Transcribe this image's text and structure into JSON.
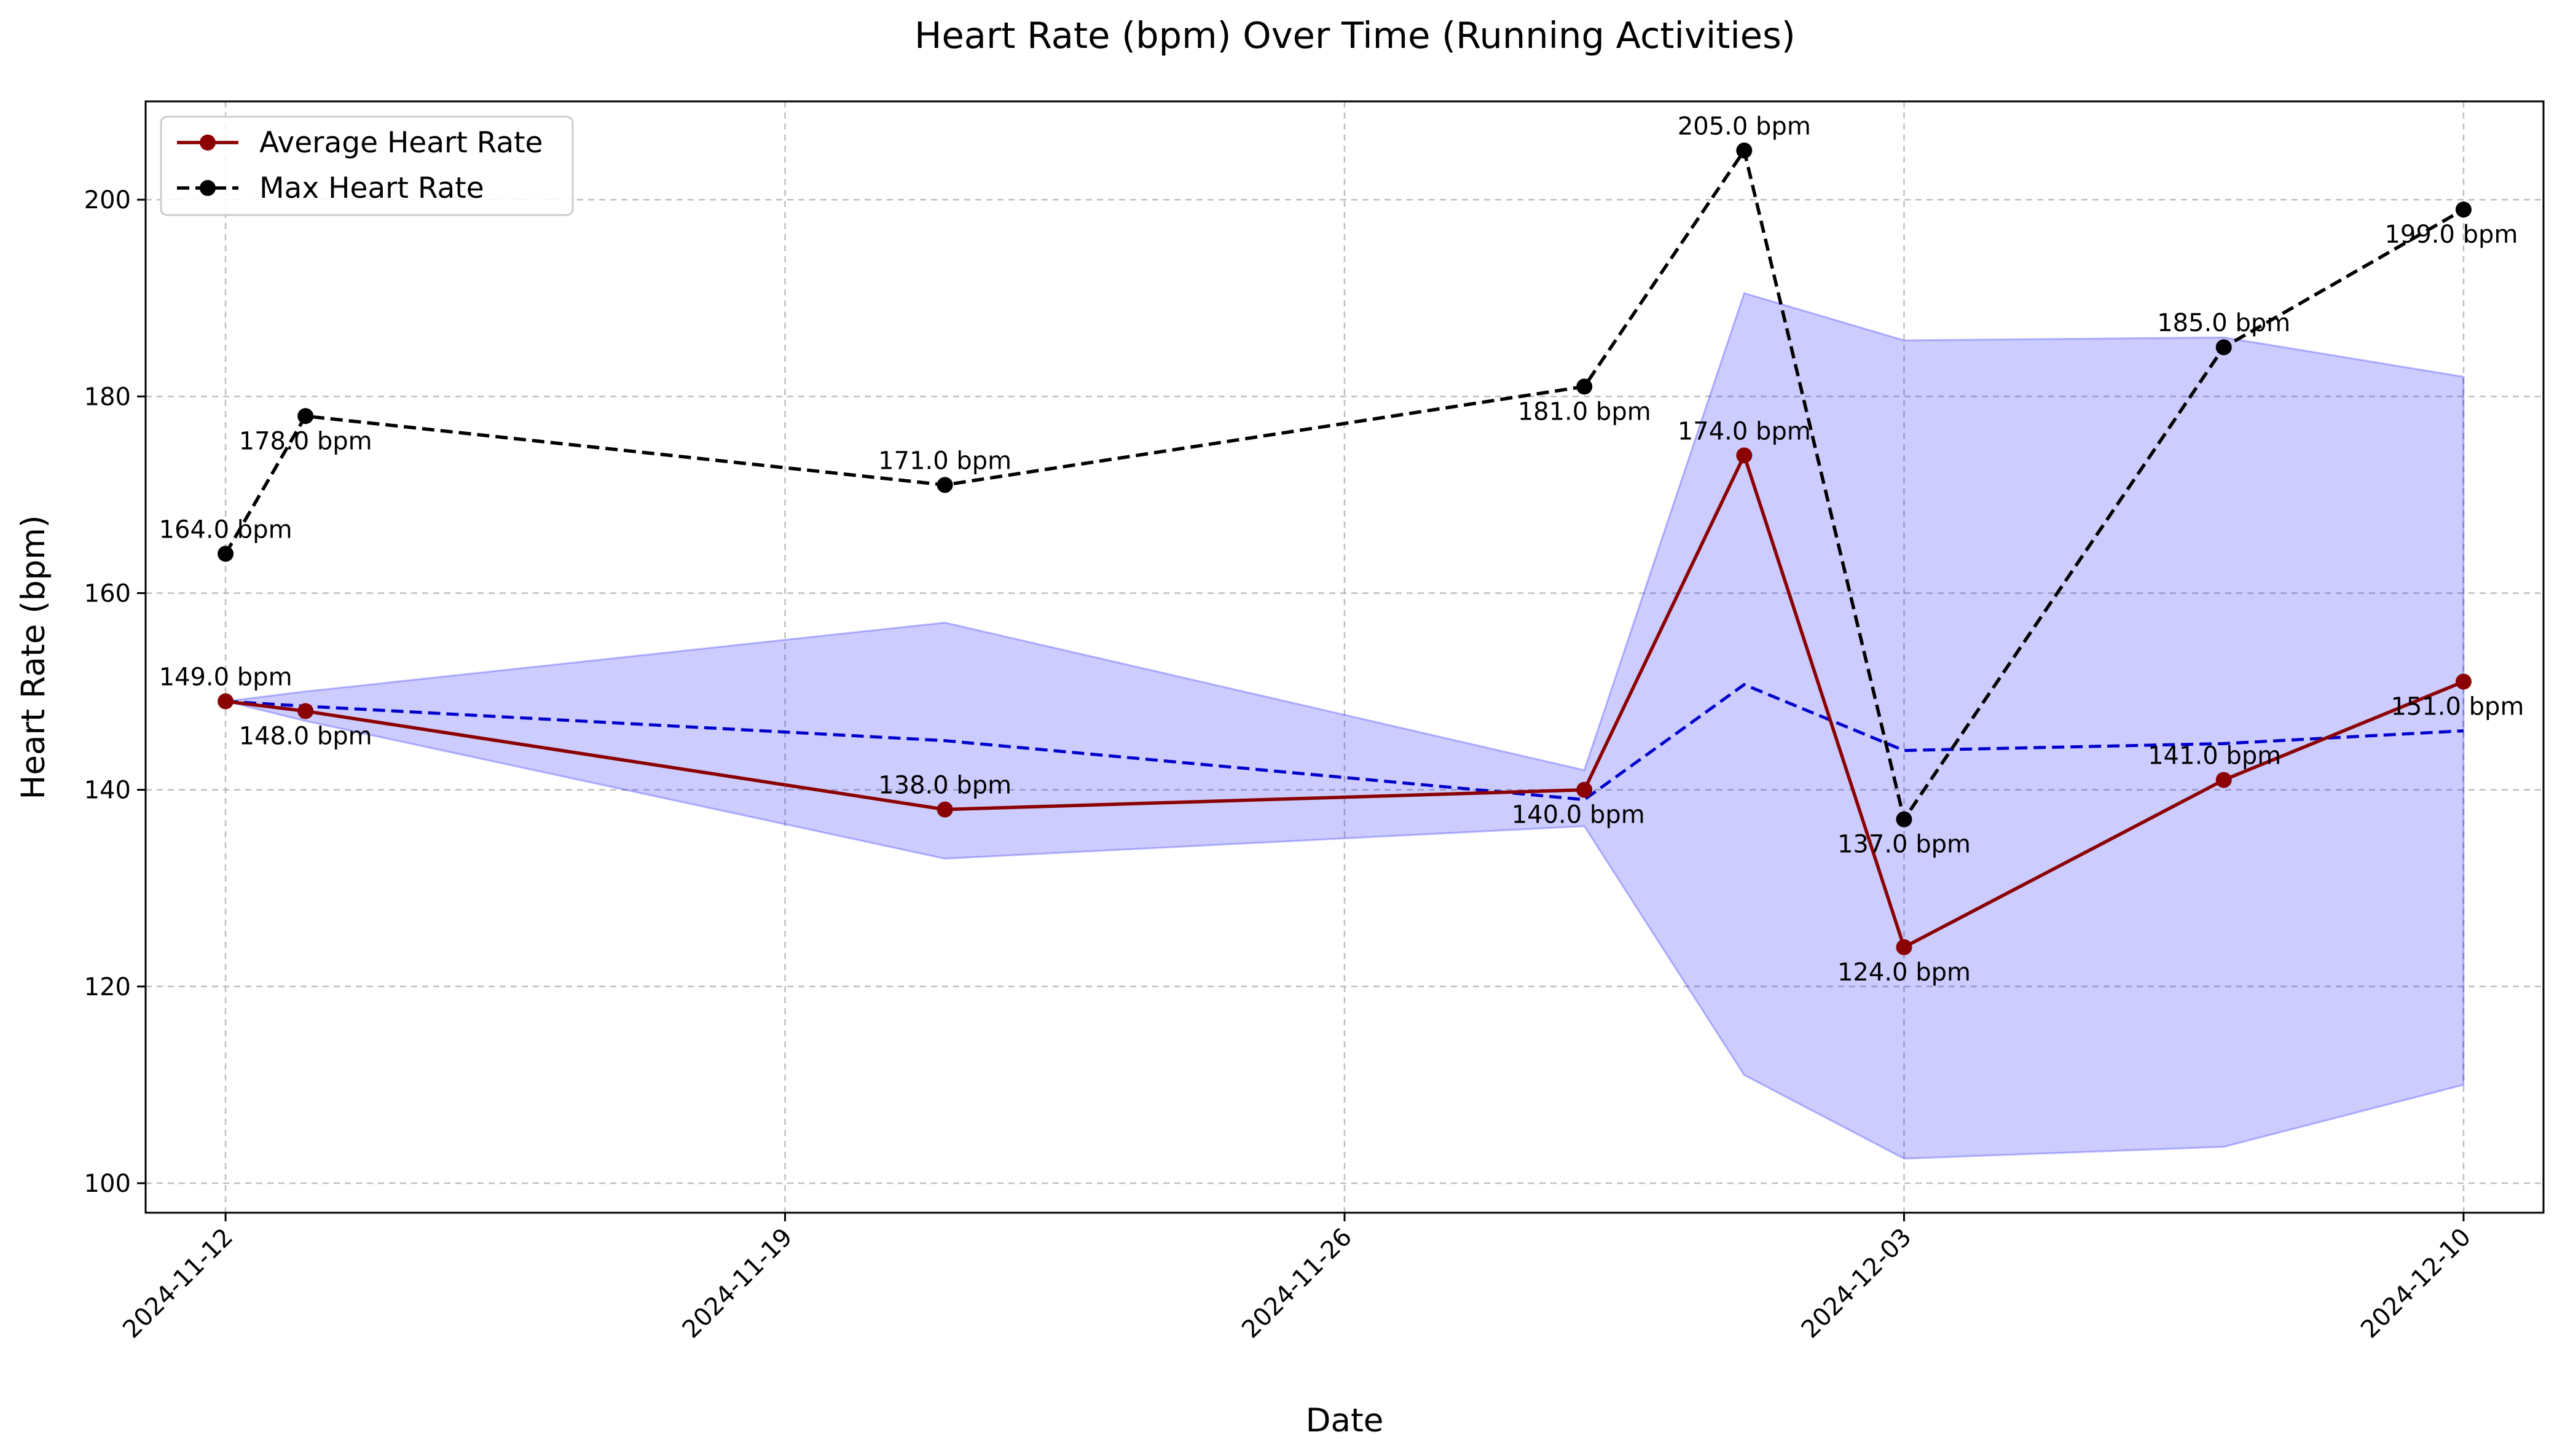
{
  "chart_data": {
    "type": "line",
    "title": "Heart Rate (bpm) Over Time (Running Activities)",
    "xlabel": "Date",
    "ylabel": "Heart Rate (bpm)",
    "xlim": [
      "2024-11-11",
      "2024-12-11"
    ],
    "ylim": [
      97,
      210
    ],
    "x_ticks": [
      "2024-11-12",
      "2024-11-19",
      "2024-11-26",
      "2024-12-03",
      "2024-12-10"
    ],
    "y_ticks": [
      100,
      120,
      140,
      160,
      180,
      200
    ],
    "grid": true,
    "legend_position": "top-left",
    "x": [
      "2024-11-12",
      "2024-11-13",
      "2024-11-21",
      "2024-11-29",
      "2024-12-01",
      "2024-12-03",
      "2024-12-07",
      "2024-12-10"
    ],
    "series": [
      {
        "name": "Average Heart Rate",
        "values": [
          149,
          148,
          138,
          140,
          174,
          124,
          141,
          151
        ],
        "labels": [
          "149.0 bpm",
          "148.0 bpm",
          "138.0 bpm",
          "140.0 bpm",
          "174.0 bpm",
          "124.0 bpm",
          "141.0 bpm",
          "151.0 bpm"
        ],
        "color": "#8b0000",
        "style": "solid",
        "marker": "circle"
      },
      {
        "name": "Max Heart Rate",
        "values": [
          164,
          178,
          171,
          181,
          205,
          137,
          185,
          199
        ],
        "labels": [
          "164.0 bpm",
          "178.0 bpm",
          "171.0 bpm",
          "181.0 bpm",
          "205.0 bpm",
          "137.0 bpm",
          "185.0 bpm",
          "199.0 bpm"
        ],
        "color": "#000000",
        "style": "dashed",
        "marker": "circle"
      },
      {
        "values": [
          149,
          148.5,
          145,
          139,
          150.7,
          144,
          144.7,
          146
        ],
        "color": "#0000cc",
        "style": "dashed"
      }
    ],
    "band": {
      "upper": [
        149,
        150,
        157,
        142,
        190.5,
        185.7,
        186,
        182
      ],
      "lower": [
        149,
        147,
        133,
        136.3,
        111,
        102.5,
        103.7,
        110
      ],
      "color": "#0000ff"
    }
  }
}
